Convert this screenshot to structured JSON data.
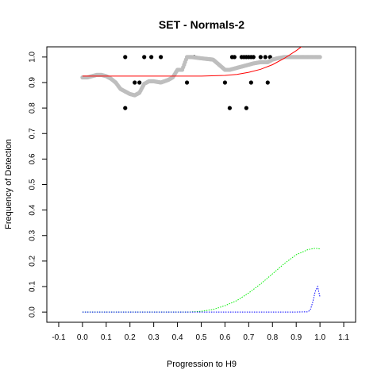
{
  "chart_data": {
    "type": "scatter",
    "title": "SET - Normals-2",
    "xlabel": "Progression to H9",
    "ylabel": "Frequency of Detection",
    "xlim": [
      -0.15,
      1.15
    ],
    "ylim": [
      -0.04,
      1.04
    ],
    "x_ticks": [
      -0.1,
      0.0,
      0.1,
      0.2,
      0.3,
      0.4,
      0.5,
      0.6,
      0.7,
      0.8,
      0.9,
      1.0,
      1.1
    ],
    "x_tick_labels": [
      "-0.1",
      "0.0",
      "0.1",
      "0.2",
      "0.3",
      "0.4",
      "0.5",
      "0.6",
      "0.7",
      "0.8",
      "0.9",
      "1.0",
      "1.1"
    ],
    "y_ticks": [
      0.0,
      0.1,
      0.2,
      0.3,
      0.4,
      0.5,
      0.6,
      0.7,
      0.8,
      0.9,
      1.0
    ],
    "y_tick_labels": [
      "0.0",
      "0.1",
      "0.2",
      "0.3",
      "0.4",
      "0.5",
      "0.6",
      "0.7",
      "0.8",
      "0.9",
      "1.0"
    ],
    "grid": false,
    "colors": {
      "observed": "#000000",
      "smoothed": "#bebebe",
      "fit": "#ff0000",
      "density_1": "#00ee00",
      "density_2": "#0000ff"
    },
    "series": [
      {
        "style": "points",
        "color": "#000000",
        "x": [
          0.18,
          0.18,
          0.22,
          0.24,
          0.26,
          0.29,
          0.33,
          0.44,
          0.47,
          0.6,
          0.62,
          0.63,
          0.64,
          0.67,
          0.68,
          0.69,
          0.69,
          0.7,
          0.71,
          0.71,
          0.72,
          0.75,
          0.77,
          0.78,
          0.79
        ],
        "y": [
          1.0,
          0.8,
          0.9,
          0.9,
          1.0,
          1.0,
          1.0,
          0.9,
          1.0,
          0.9,
          0.8,
          1.0,
          1.0,
          1.0,
          1.0,
          1.0,
          0.8,
          1.0,
          0.9,
          1.0,
          1.0,
          1.0,
          1.0,
          0.9,
          1.0
        ]
      },
      {
        "style": "dense-points",
        "color": "#bebebe",
        "x": [
          0.0,
          0.02,
          0.04,
          0.06,
          0.08,
          0.1,
          0.12,
          0.14,
          0.16,
          0.18,
          0.2,
          0.22,
          0.24,
          0.26,
          0.28,
          0.3,
          0.33,
          0.36,
          0.38,
          0.4,
          0.42,
          0.44,
          0.46,
          0.5,
          0.55,
          0.6,
          0.62,
          0.64,
          0.66,
          0.68,
          0.7,
          0.72,
          0.75,
          0.78,
          0.8,
          0.82,
          0.85,
          0.9,
          0.95,
          1.0
        ],
        "y": [
          0.92,
          0.92,
          0.925,
          0.93,
          0.93,
          0.925,
          0.915,
          0.9,
          0.875,
          0.865,
          0.855,
          0.85,
          0.86,
          0.895,
          0.905,
          0.905,
          0.9,
          0.91,
          0.92,
          0.95,
          0.95,
          1.0,
          1.0,
          0.995,
          0.99,
          0.95,
          0.95,
          0.955,
          0.96,
          0.965,
          0.97,
          0.975,
          0.98,
          0.98,
          0.99,
          0.995,
          1.0,
          1.0,
          1.0,
          1.0
        ]
      },
      {
        "style": "line",
        "color": "#ff0000",
        "x": [
          0.0,
          0.1,
          0.2,
          0.3,
          0.4,
          0.5,
          0.6,
          0.65,
          0.7,
          0.75,
          0.8,
          0.85,
          0.9,
          0.95,
          0.97
        ],
        "y": [
          0.925,
          0.925,
          0.925,
          0.925,
          0.925,
          0.925,
          0.928,
          0.932,
          0.94,
          0.952,
          0.97,
          0.995,
          1.025,
          1.06,
          1.08
        ]
      },
      {
        "style": "dotted",
        "color": "#00ee00",
        "x": [
          0.0,
          0.1,
          0.2,
          0.3,
          0.4,
          0.45,
          0.5,
          0.55,
          0.6,
          0.65,
          0.7,
          0.75,
          0.8,
          0.85,
          0.9,
          0.95,
          0.98,
          1.0
        ],
        "y": [
          0.0,
          0.0,
          0.0,
          0.0,
          0.0,
          0.0,
          0.003,
          0.01,
          0.025,
          0.045,
          0.075,
          0.11,
          0.15,
          0.19,
          0.225,
          0.245,
          0.25,
          0.248
        ]
      },
      {
        "style": "dotted",
        "color": "#0000ff",
        "x": [
          0.0,
          0.3,
          0.6,
          0.9,
          0.95,
          0.96,
          0.97,
          0.98,
          0.99,
          1.0
        ],
        "y": [
          0.0,
          0.0,
          0.0,
          0.0,
          0.001,
          0.01,
          0.04,
          0.08,
          0.1,
          0.06
        ]
      }
    ]
  }
}
